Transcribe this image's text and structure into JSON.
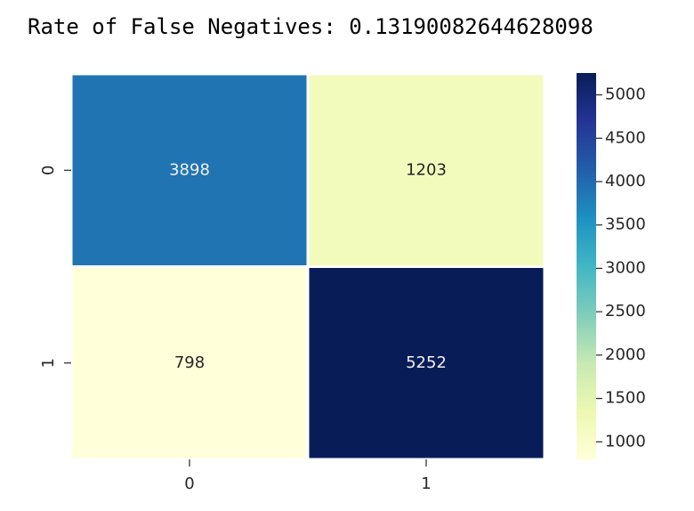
{
  "output": {
    "text": "Rate of False Negatives: 0.13190082644628098"
  },
  "chart_data": {
    "type": "heatmap",
    "colormap": "YlGnBu",
    "x_tick_labels": [
      "0",
      "1"
    ],
    "y_tick_labels": [
      "0",
      "1"
    ],
    "values": [
      [
        3898,
        1203
      ],
      [
        798,
        5252
      ]
    ],
    "cell_labels": [
      [
        "3898",
        "1203"
      ],
      [
        "798",
        "5252"
      ]
    ],
    "color_range": [
      798,
      5252
    ],
    "colorbar_ticks": [
      1000,
      1500,
      2000,
      2500,
      3000,
      3500,
      4000,
      4500,
      5000
    ],
    "colorbar_tick_labels": [
      "1000",
      "1500",
      "2000",
      "2500",
      "3000",
      "3500",
      "4000",
      "4500",
      "5000"
    ],
    "cell_gap_color": "#ffffff"
  }
}
